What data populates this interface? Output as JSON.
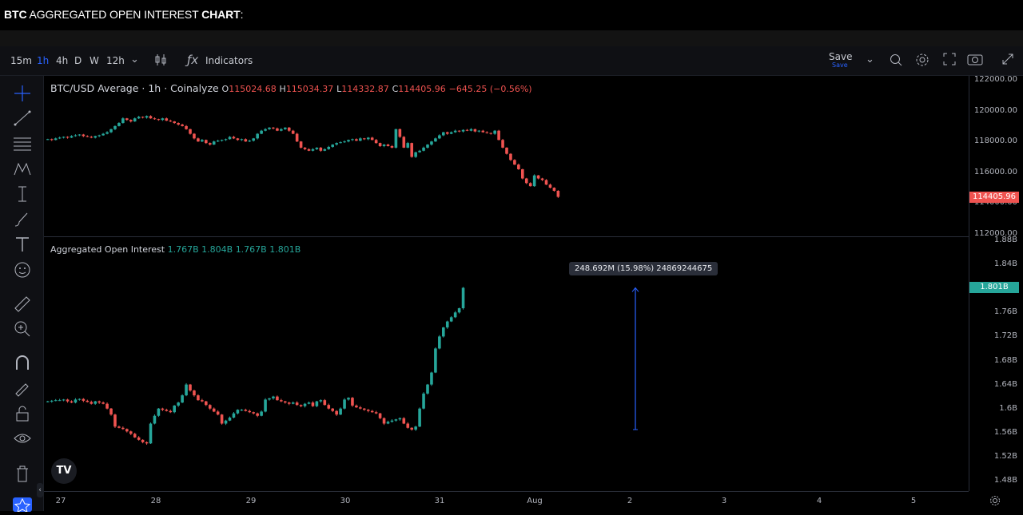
{
  "headline": {
    "bold1": "BTC",
    "middle": " AGGREGATED OPEN INTEREST ",
    "bold2": "CHART",
    "tail": ":"
  },
  "toolbar": {
    "timeframes": [
      "15m",
      "1h",
      "4h",
      "D",
      "W",
      "12h"
    ],
    "active_timeframe": "1h",
    "indicators_label": "Indicators",
    "save_label": "Save",
    "save_sub": "Save"
  },
  "price_legend": {
    "symbol": "BTC/USD Average · 1h · Coinalyze",
    "o_label": "O",
    "o": "115024.68",
    "h_label": "H",
    "h": "115034.37",
    "l_label": "L",
    "l": "114332.87",
    "c_label": "C",
    "c": "114405.96",
    "change": "−645.25 (−0.56%)"
  },
  "oi_legend": {
    "name": "Aggregated Open Interest",
    "v1": "1.767B",
    "v2": "1.804B",
    "v3": "1.767B",
    "v4": "1.801B"
  },
  "price_badge": "114405.96",
  "oi_badge": "1.801B",
  "tooltip": "248.692M (15.98%) 24869244675",
  "logo_text": "TV",
  "colors": {
    "up": "#26a69a",
    "down": "#ef5350",
    "accent": "#2962ff",
    "measure": "#2962ff"
  },
  "chart_data": [
    {
      "type": "candlestick",
      "title": "BTC/USD Average · 1h · Coinalyze",
      "y_ticks": [
        "122000.00",
        "120000.00",
        "118000.00",
        "116000.00",
        "114000.00",
        "112000.00"
      ],
      "ylim": [
        112000,
        122000
      ],
      "x_ticks": [
        "27",
        "28",
        "29",
        "30",
        "31",
        "Aug",
        "2",
        "3",
        "4",
        "5"
      ],
      "closes": [
        118150,
        118100,
        118200,
        118250,
        118300,
        118250,
        118350,
        118400,
        118450,
        118350,
        118300,
        118250,
        118350,
        118400,
        118500,
        118600,
        118800,
        119000,
        119200,
        119500,
        119400,
        119300,
        119500,
        119600,
        119550,
        119650,
        119500,
        119450,
        119400,
        119500,
        119350,
        119300,
        119200,
        119100,
        119000,
        118800,
        118500,
        118200,
        118000,
        118100,
        117900,
        117800,
        118000,
        118050,
        118100,
        118150,
        118300,
        118200,
        118100,
        118150,
        118000,
        118050,
        118200,
        118500,
        118700,
        118800,
        118900,
        118850,
        118700,
        118800,
        118900,
        118700,
        118500,
        118000,
        117600,
        117500,
        117400,
        117500,
        117600,
        117400,
        117500,
        117650,
        117800,
        117900,
        117950,
        118000,
        118100,
        118150,
        118050,
        118200,
        118150,
        118250,
        118100,
        117900,
        117700,
        117800,
        117700,
        117600,
        118800,
        118300,
        117600,
        117900,
        117000,
        117300,
        117400,
        117600,
        117800,
        118000,
        118200,
        118400,
        118600,
        118500,
        118600,
        118700,
        118650,
        118750,
        118700,
        118800,
        118650,
        118700,
        118600,
        118550,
        118500,
        118700,
        118100,
        117600,
        117200,
        116800,
        116500,
        116200,
        115600,
        115300,
        115100,
        115800,
        115600,
        115500,
        115200,
        115000,
        114800,
        114405.96
      ]
    },
    {
      "type": "candlestick",
      "title": "Aggregated Open Interest",
      "y_ticks": [
        "1.88B",
        "1.84B",
        "1.8B",
        "1.76B",
        "1.72B",
        "1.68B",
        "1.64B",
        "1.6B",
        "1.56B",
        "1.52B",
        "1.48B"
      ],
      "ylim": [
        1.47,
        1.885
      ],
      "x_ticks": [
        "27",
        "28",
        "29",
        "30",
        "31",
        "Aug",
        "2",
        "3",
        "4",
        "5"
      ],
      "closes": [
        1.612,
        1.613,
        1.614,
        1.614,
        1.615,
        1.612,
        1.61,
        1.615,
        1.616,
        1.613,
        1.611,
        1.608,
        1.612,
        1.61,
        1.608,
        1.6,
        1.59,
        1.57,
        1.568,
        1.566,
        1.562,
        1.558,
        1.552,
        1.548,
        1.544,
        1.542,
        1.575,
        1.588,
        1.6,
        1.598,
        1.596,
        1.594,
        1.605,
        1.61,
        1.622,
        1.64,
        1.63,
        1.622,
        1.614,
        1.612,
        1.606,
        1.6,
        1.595,
        1.59,
        1.575,
        1.58,
        1.585,
        1.592,
        1.598,
        1.598,
        1.596,
        1.594,
        1.592,
        1.588,
        1.595,
        1.615,
        1.617,
        1.62,
        1.614,
        1.612,
        1.61,
        1.608,
        1.61,
        1.606,
        1.604,
        1.608,
        1.61,
        1.604,
        1.612,
        1.614,
        1.606,
        1.6,
        1.596,
        1.59,
        1.6,
        1.615,
        1.618,
        1.605,
        1.602,
        1.6,
        1.598,
        1.596,
        1.594,
        1.592,
        1.584,
        1.575,
        1.578,
        1.58,
        1.582,
        1.584,
        1.575,
        1.568,
        1.565,
        1.57,
        1.6,
        1.625,
        1.64,
        1.66,
        1.7,
        1.72,
        1.735,
        1.745,
        1.752,
        1.76,
        1.767,
        1.801
      ]
    }
  ]
}
